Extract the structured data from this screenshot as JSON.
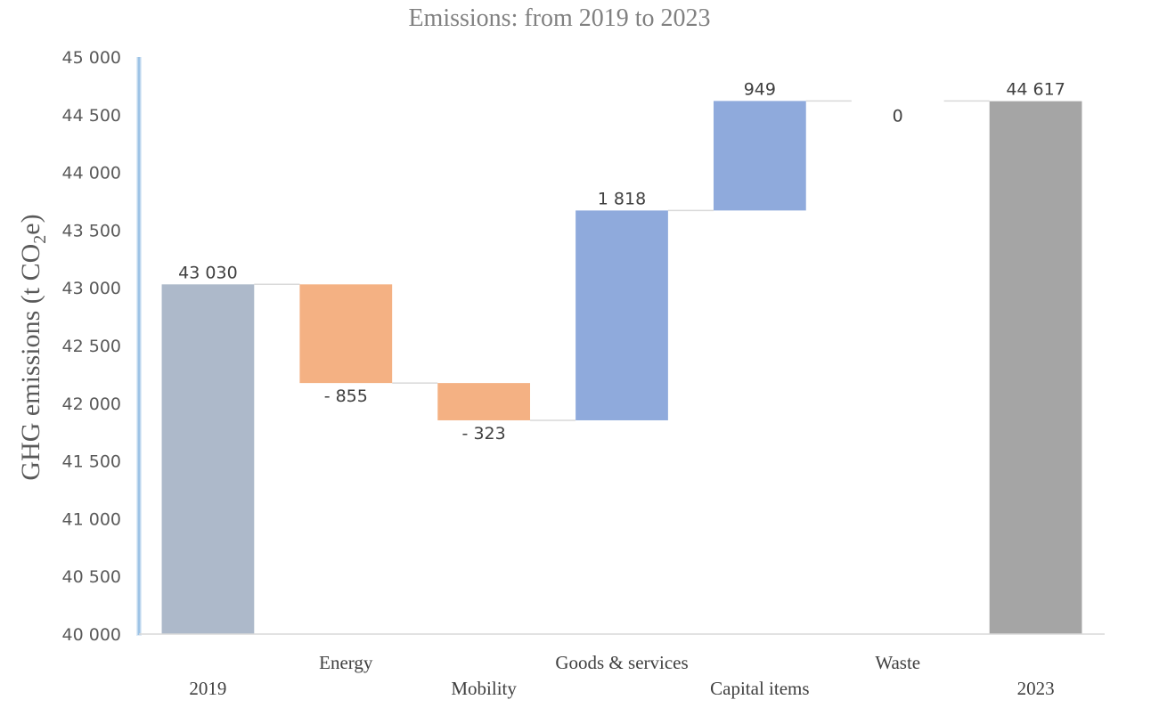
{
  "chart_data": {
    "type": "bar",
    "subtype": "waterfall",
    "title": "Emissions: from 2019 to 2023",
    "ylabel": {
      "main": "GHG emissions (t CO",
      "sub": "2",
      "tail": "e)"
    },
    "xlabel": "",
    "ylim": [
      40000,
      45000
    ],
    "yticks": [
      40000,
      40500,
      41000,
      41500,
      42000,
      42500,
      43000,
      43500,
      44000,
      44500,
      45000
    ],
    "ytick_labels": [
      "40 000",
      "40 500",
      "41 000",
      "41 500",
      "42 000",
      "42 500",
      "43 000",
      "43 500",
      "44 000",
      "44 500",
      "45 000"
    ],
    "categories": [
      "2019",
      "Energy",
      "Mobility",
      "Goods & services",
      "Capital items",
      "Waste",
      "2023"
    ],
    "values": [
      43030,
      -855,
      -323,
      1818,
      949,
      0,
      44617
    ],
    "kinds": [
      "total",
      "delta",
      "delta",
      "delta",
      "delta",
      "delta",
      "total"
    ],
    "value_labels": [
      "43 030",
      "- 855",
      "- 323",
      "1 818",
      "949",
      "0",
      "44 617"
    ],
    "grid": false,
    "legend": "none",
    "colors": {
      "start_total": "#ADB9CA",
      "end_total": "#A5A5A5",
      "decrease": "#F4B183",
      "increase": "#8FAADC",
      "connector": "#D9D9D9",
      "axis": "#D9D9D9",
      "y_axis_line": "#9DC3E6"
    }
  }
}
